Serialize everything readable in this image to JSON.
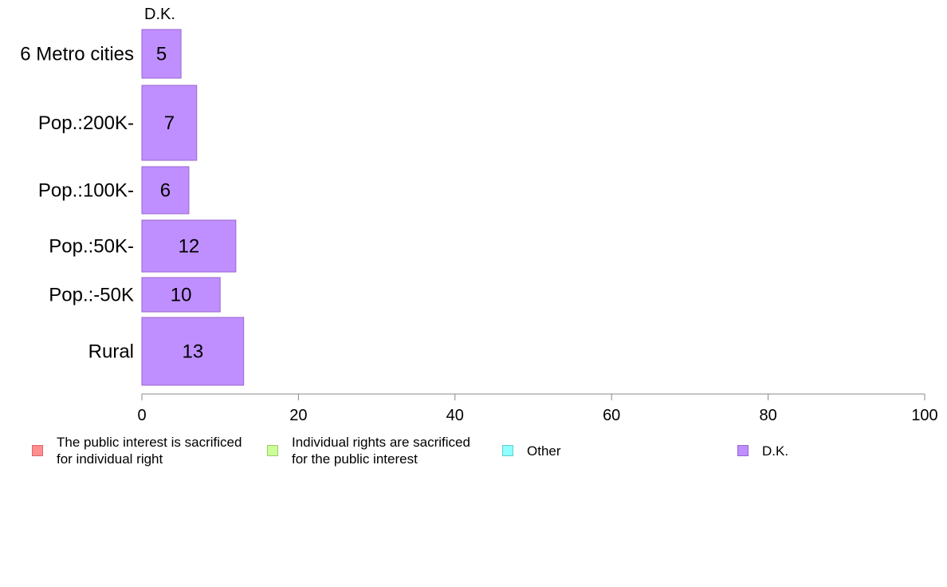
{
  "chart_data": {
    "type": "bar",
    "orientation": "horizontal",
    "stacked": true,
    "categories": [
      "6 Metro cities",
      "Pop.:200K-",
      "Pop.:100K-",
      "Pop.:50K-",
      "Pop.:-50K",
      "Rural"
    ],
    "series": [
      {
        "name": "The public interest is sacrificed\nfor individual right",
        "color": "#ff8f8f",
        "border": "#e06666",
        "values": [
          null,
          null,
          null,
          null,
          null,
          null
        ]
      },
      {
        "name": "Individual rights are sacrificed\nfor the public interest",
        "color": "#ccff99",
        "border": "#99cc66",
        "values": [
          null,
          null,
          null,
          null,
          null,
          null
        ]
      },
      {
        "name": "Other",
        "color": "#8fffff",
        "border": "#66cccc",
        "values": [
          null,
          null,
          null,
          null,
          null,
          null
        ]
      },
      {
        "name": "D.K.",
        "color": "#bf8fff",
        "border": "#9966cc",
        "values": [
          5,
          7,
          6,
          12,
          10,
          13
        ]
      }
    ],
    "top_series_label": "D.K.",
    "xlim": [
      0,
      100
    ],
    "xticks": [
      0,
      20,
      40,
      60,
      80,
      100
    ],
    "legend_position": "bottom",
    "grid": false
  }
}
